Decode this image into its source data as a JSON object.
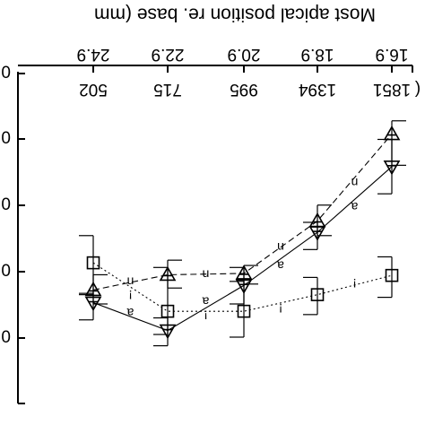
{
  "chart_data": {
    "type": "line",
    "title": "Most apical position re. base (mm",
    "xlabel": "",
    "ylabel": "",
    "x": [
      24.9,
      22.9,
      20.9,
      18.9,
      16.9
    ],
    "top_tick_labels": [
      "24.9",
      "22.9",
      "20.9",
      "18.9",
      "16.9"
    ],
    "bottom_tick_labels": [
      "502",
      "715",
      "995",
      "1394",
      "1851"
    ],
    "left_tick_labels": [
      "0",
      "0",
      "0",
      "0",
      "0",
      ""
    ],
    "ylim": [
      0,
      5
    ],
    "series": [
      {
        "marker": "square",
        "linestyle": "dotted",
        "values": [
          2.12,
          1.39,
          1.39,
          1.64,
          1.93
        ],
        "errors": [
          [
            1.64,
            2.53
          ],
          [
            1.04,
            2.05
          ],
          [
            1.0,
            1.84
          ],
          [
            1.34,
            1.9
          ],
          [
            1.6,
            2.21
          ]
        ]
      },
      {
        "marker": "triangle-up",
        "linestyle": "dashed",
        "values": [
          1.71,
          1.94,
          1.96,
          2.75,
          4.06
        ],
        "errors": [
          [
            1.5,
            1.94
          ],
          [
            1.74,
            2.16
          ],
          [
            1.8,
            2.08
          ],
          [
            2.53,
            2.99
          ],
          [
            3.59,
            4.26
          ]
        ]
      },
      {
        "marker": "triangle-down",
        "linestyle": "solid",
        "values": [
          1.52,
          1.1,
          1.78,
          2.58,
          3.57
        ],
        "errors": [
          [
            1.26,
            1.66
          ],
          [
            0.87,
            1.29
          ],
          [
            1.5,
            2.05
          ],
          [
            2.32,
            2.73
          ],
          [
            3.16,
            3.98
          ]
        ]
      }
    ],
    "point_annotations": [
      {
        "x_between": [
          24.9,
          22.9
        ],
        "y": 1.85,
        "text": "n"
      },
      {
        "x_between": [
          24.9,
          22.9
        ],
        "y": 1.65,
        "text": "!"
      },
      {
        "x_between": [
          24.9,
          22.9
        ],
        "y": 1.38,
        "text": "a"
      },
      {
        "x_between": [
          22.9,
          20.9
        ],
        "y": 1.96,
        "text": "n"
      },
      {
        "x_between": [
          22.9,
          20.9
        ],
        "y": 1.55,
        "text": "a"
      },
      {
        "x_between": [
          22.9,
          20.9
        ],
        "y": 1.35,
        "text": "!"
      },
      {
        "x_between": [
          20.9,
          18.9
        ],
        "y": 2.37,
        "text": "n"
      },
      {
        "x_between": [
          20.9,
          18.9
        ],
        "y": 2.09,
        "text": "a"
      },
      {
        "x_between": [
          20.9,
          18.9
        ],
        "y": 1.45,
        "text": "!"
      },
      {
        "x_between": [
          18.9,
          16.9
        ],
        "y": 3.34,
        "text": "n"
      },
      {
        "x_between": [
          18.9,
          16.9
        ],
        "y": 2.98,
        "text": "a"
      },
      {
        "x_between": [
          18.9,
          16.9
        ],
        "y": 1.83,
        "text": "!"
      }
    ]
  }
}
